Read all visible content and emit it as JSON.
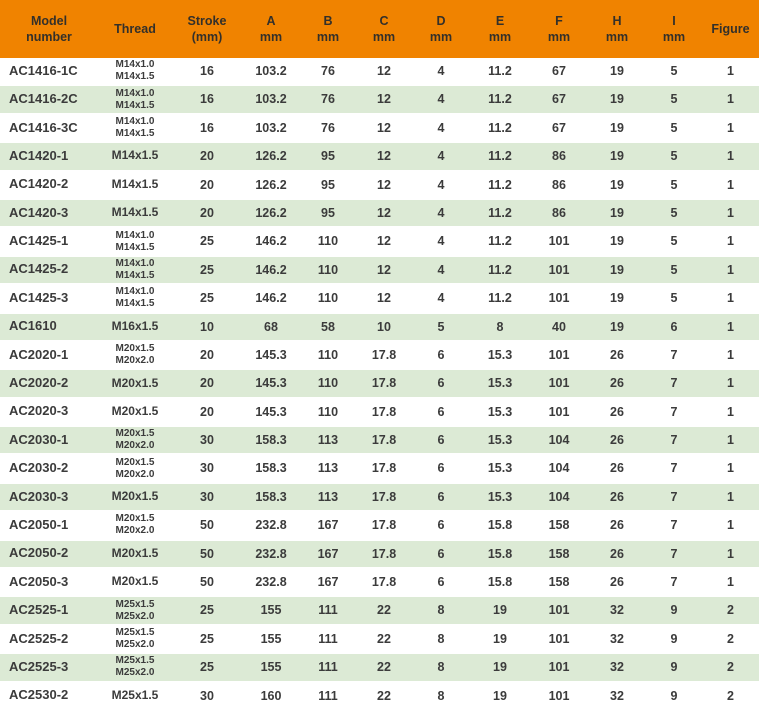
{
  "colors": {
    "header_bg": "#F08300",
    "header_text": "#33302A",
    "row_bg": "#FFFFFF",
    "row_alt_bg": "#DCEAD5",
    "cell_text": "#3B3B3B"
  },
  "table": {
    "columns": [
      {
        "id": "model",
        "label": "Model\nnumber"
      },
      {
        "id": "thread",
        "label": "Thread"
      },
      {
        "id": "stroke",
        "label": "Stroke\n(mm)"
      },
      {
        "id": "a",
        "label": "A\nmm"
      },
      {
        "id": "b",
        "label": "B\nmm"
      },
      {
        "id": "c",
        "label": "C\nmm"
      },
      {
        "id": "d",
        "label": "D\nmm"
      },
      {
        "id": "e",
        "label": "E\nmm"
      },
      {
        "id": "f",
        "label": "F\nmm"
      },
      {
        "id": "h",
        "label": "H\nmm"
      },
      {
        "id": "i",
        "label": "I\nmm"
      },
      {
        "id": "figure",
        "label": "Figure"
      }
    ],
    "rows": [
      [
        "AC1416-1C",
        "M14x1.0\nM14x1.5",
        "16",
        "103.2",
        "76",
        "12",
        "4",
        "11.2",
        "67",
        "19",
        "5",
        "1"
      ],
      [
        "AC1416-2C",
        "M14x1.0\nM14x1.5",
        "16",
        "103.2",
        "76",
        "12",
        "4",
        "11.2",
        "67",
        "19",
        "5",
        "1"
      ],
      [
        "AC1416-3C",
        "M14x1.0\nM14x1.5",
        "16",
        "103.2",
        "76",
        "12",
        "4",
        "11.2",
        "67",
        "19",
        "5",
        "1"
      ],
      [
        "AC1420-1",
        "M14x1.5",
        "20",
        "126.2",
        "95",
        "12",
        "4",
        "11.2",
        "86",
        "19",
        "5",
        "1"
      ],
      [
        "AC1420-2",
        "M14x1.5",
        "20",
        "126.2",
        "95",
        "12",
        "4",
        "11.2",
        "86",
        "19",
        "5",
        "1"
      ],
      [
        "AC1420-3",
        "M14x1.5",
        "20",
        "126.2",
        "95",
        "12",
        "4",
        "11.2",
        "86",
        "19",
        "5",
        "1"
      ],
      [
        "AC1425-1",
        "M14x1.0\nM14x1.5",
        "25",
        "146.2",
        "110",
        "12",
        "4",
        "11.2",
        "101",
        "19",
        "5",
        "1"
      ],
      [
        "AC1425-2",
        "M14x1.0\nM14x1.5",
        "25",
        "146.2",
        "110",
        "12",
        "4",
        "11.2",
        "101",
        "19",
        "5",
        "1"
      ],
      [
        "AC1425-3",
        "M14x1.0\nM14x1.5",
        "25",
        "146.2",
        "110",
        "12",
        "4",
        "11.2",
        "101",
        "19",
        "5",
        "1"
      ],
      [
        "AC1610",
        "M16x1.5",
        "10",
        "68",
        "58",
        "10",
        "5",
        "8",
        "40",
        "19",
        "6",
        "1"
      ],
      [
        "AC2020-1",
        "M20x1.5\nM20x2.0",
        "20",
        "145.3",
        "110",
        "17.8",
        "6",
        "15.3",
        "101",
        "26",
        "7",
        "1"
      ],
      [
        "AC2020-2",
        "M20x1.5",
        "20",
        "145.3",
        "110",
        "17.8",
        "6",
        "15.3",
        "101",
        "26",
        "7",
        "1"
      ],
      [
        "AC2020-3",
        "M20x1.5",
        "20",
        "145.3",
        "110",
        "17.8",
        "6",
        "15.3",
        "101",
        "26",
        "7",
        "1"
      ],
      [
        "AC2030-1",
        "M20x1.5\nM20x2.0",
        "30",
        "158.3",
        "113",
        "17.8",
        "6",
        "15.3",
        "104",
        "26",
        "7",
        "1"
      ],
      [
        "AC2030-2",
        "M20x1.5\nM20x2.0",
        "30",
        "158.3",
        "113",
        "17.8",
        "6",
        "15.3",
        "104",
        "26",
        "7",
        "1"
      ],
      [
        "AC2030-3",
        "M20x1.5",
        "30",
        "158.3",
        "113",
        "17.8",
        "6",
        "15.3",
        "104",
        "26",
        "7",
        "1"
      ],
      [
        "AC2050-1",
        "M20x1.5\nM20x2.0",
        "50",
        "232.8",
        "167",
        "17.8",
        "6",
        "15.8",
        "158",
        "26",
        "7",
        "1"
      ],
      [
        "AC2050-2",
        "M20x1.5",
        "50",
        "232.8",
        "167",
        "17.8",
        "6",
        "15.8",
        "158",
        "26",
        "7",
        "1"
      ],
      [
        "AC2050-3",
        "M20x1.5",
        "50",
        "232.8",
        "167",
        "17.8",
        "6",
        "15.8",
        "158",
        "26",
        "7",
        "1"
      ],
      [
        "AC2525-1",
        "M25x1.5\nM25x2.0",
        "25",
        "155",
        "111",
        "22",
        "8",
        "19",
        "101",
        "32",
        "9",
        "2"
      ],
      [
        "AC2525-2",
        "M25x1.5\nM25x2.0",
        "25",
        "155",
        "111",
        "22",
        "8",
        "19",
        "101",
        "32",
        "9",
        "2"
      ],
      [
        "AC2525-3",
        "M25x1.5\nM25x2.0",
        "25",
        "155",
        "111",
        "22",
        "8",
        "19",
        "101",
        "32",
        "9",
        "2"
      ],
      [
        "AC2530-2",
        "M25x1.5",
        "30",
        "160",
        "111",
        "22",
        "8",
        "19",
        "101",
        "32",
        "9",
        "2"
      ]
    ]
  }
}
